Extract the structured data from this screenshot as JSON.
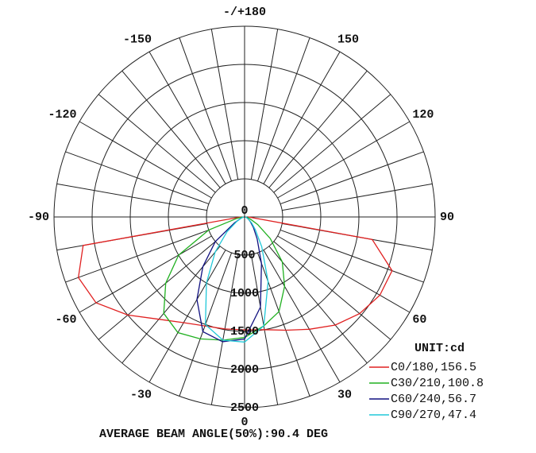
{
  "chart_data": {
    "type": "polar",
    "angles": [
      -90,
      -80,
      -70,
      -60,
      -50,
      -40,
      -30,
      -20,
      -10,
      0,
      10,
      20,
      30,
      40,
      50,
      60,
      70,
      80,
      90
    ],
    "series": [
      {
        "name": "C0/180,156.5",
        "color": "#e02020",
        "values": [
          50,
          2150,
          2320,
          2250,
          2000,
          1750,
          1600,
          1520,
          1490,
          1480,
          1500,
          1580,
          1700,
          1850,
          1970,
          2050,
          2060,
          1700,
          50
        ]
      },
      {
        "name": "C30/210,100.8",
        "color": "#20b020",
        "values": [
          20,
          100,
          500,
          1000,
          1350,
          1650,
          1750,
          1700,
          1640,
          1580,
          1450,
          1320,
          1050,
          770,
          440,
          200,
          80,
          30,
          10
        ]
      },
      {
        "name": "C60/240,56.7",
        "color": "#101080",
        "values": [
          10,
          20,
          50,
          150,
          500,
          850,
          1250,
          1600,
          1660,
          1600,
          1200,
          650,
          330,
          180,
          100,
          60,
          30,
          20,
          10
        ]
      },
      {
        "name": "C90/270,47.4",
        "color": "#20c8d8",
        "values": [
          10,
          20,
          50,
          120,
          300,
          600,
          1000,
          1500,
          1640,
          1640,
          1450,
          900,
          450,
          220,
          120,
          60,
          30,
          20,
          10
        ]
      }
    ],
    "rlim": [
      0,
      2500
    ],
    "rticks": [
      0,
      500,
      1000,
      1500,
      2000,
      2500
    ],
    "angle_ticks": [
      {
        "value": 180,
        "label": "-/+180"
      },
      -150,
      150,
      -120,
      120,
      -90,
      90,
      -60,
      60,
      -30,
      30,
      0
    ],
    "unit_label": "UNIT:cd",
    "annotation": "AVERAGE BEAM ANGLE(50%):90.4 DEG"
  }
}
